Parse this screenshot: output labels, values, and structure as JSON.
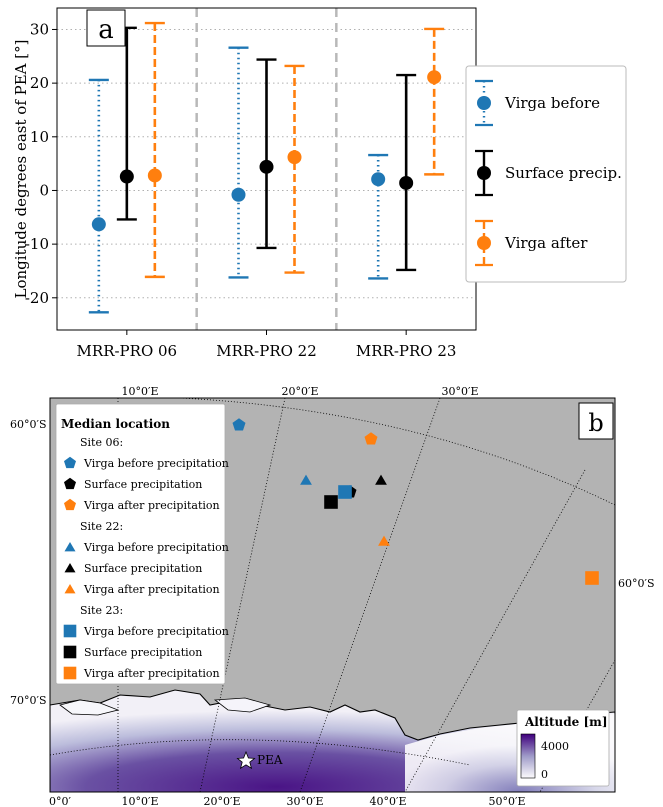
{
  "chart_data": [
    {
      "type": "errorbar",
      "panel_label": "a",
      "ylabel": "Longitude degrees east of PEA [°]",
      "categories": [
        "MRR-PRO 06",
        "MRR-PRO 22",
        "MRR-PRO 23"
      ],
      "ylim": [
        -26,
        34
      ],
      "yticks": [
        -20,
        -10,
        0,
        10,
        20,
        30
      ],
      "grid": "horizontal dotted",
      "legend_placement": "right, outside",
      "series": [
        {
          "name": "Virga before",
          "color": "#1f77b4",
          "linestyle": "dotted",
          "median": [
            -6.3,
            -0.8,
            2.1
          ],
          "lower": [
            -22.7,
            -16.2,
            -16.4
          ],
          "upper": [
            20.6,
            26.6,
            6.6
          ]
        },
        {
          "name": "Surface precip.",
          "color": "#000000",
          "linestyle": "solid",
          "median": [
            2.6,
            4.4,
            1.4
          ],
          "lower": [
            -5.4,
            -10.7,
            -14.8
          ],
          "upper": [
            30.3,
            24.4,
            21.5
          ]
        },
        {
          "name": "Virga after",
          "color": "#ff7f0e",
          "linestyle": "dashed",
          "median": [
            2.8,
            6.2,
            21.1
          ],
          "lower": [
            -16.1,
            -15.3,
            3.0
          ],
          "upper": [
            31.2,
            23.2,
            30.1
          ]
        }
      ]
    },
    {
      "type": "map",
      "panel_label": "b",
      "lon_labels_top": [
        "10°0′E",
        "20°0′E",
        "30°0′E"
      ],
      "lon_labels_bottom": [
        "0°0′",
        "10°0′E",
        "20°0′E",
        "30°0′E",
        "40°0′E",
        "50°0′E"
      ],
      "lat_labels": [
        "60°0′S",
        "70°0′S",
        "60°0′S"
      ],
      "station_label": "PEA",
      "legend": {
        "title": "Median location",
        "groups": [
          {
            "site": "Site 06:",
            "items": [
              "Virga before precipitation",
              "Surface precipitation",
              "Virga after precipitation"
            ]
          },
          {
            "site": "Site 22:",
            "items": [
              "Virga before precipitation",
              "Surface precipitation",
              "Virga after precipitation"
            ]
          },
          {
            "site": "Site 23:",
            "items": [
              "Virga before precipitation",
              "Surface precipitation",
              "Virga after precipitation"
            ]
          }
        ]
      },
      "colorbar": {
        "title": "Altitude [m]",
        "max_label": "4000",
        "min_label": "0"
      }
    }
  ],
  "colors": {
    "virga_before": "#1f77b4",
    "surface": "#000000",
    "virga_after": "#ff7f0e",
    "ocean": "#b3b3b3",
    "altitude_high": "#3f007d"
  }
}
